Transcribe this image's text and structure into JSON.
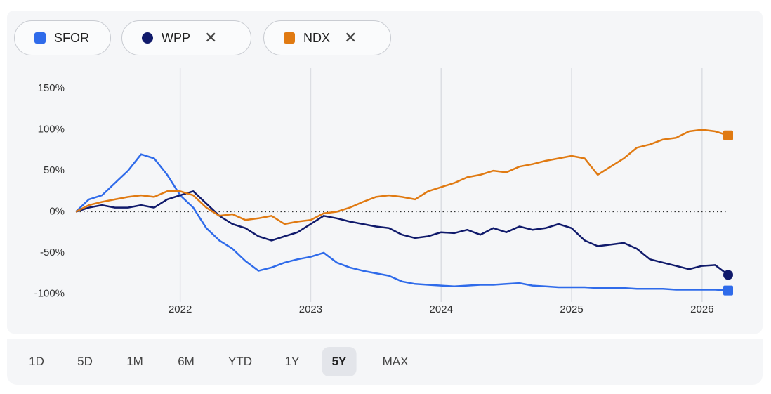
{
  "chart_data": {
    "type": "line",
    "x": [
      2021.2,
      2021.3,
      2021.4,
      2021.5,
      2021.6,
      2021.7,
      2021.8,
      2021.9,
      2022.0,
      2022.1,
      2022.2,
      2022.3,
      2022.4,
      2022.5,
      2022.6,
      2022.7,
      2022.8,
      2022.9,
      2023.0,
      2023.1,
      2023.2,
      2023.3,
      2023.4,
      2023.5,
      2023.6,
      2023.7,
      2023.8,
      2023.9,
      2024.0,
      2024.1,
      2024.2,
      2024.3,
      2024.4,
      2024.5,
      2024.6,
      2024.7,
      2024.8,
      2024.9,
      2025.0,
      2025.1,
      2025.2,
      2025.3,
      2025.4,
      2025.5,
      2025.6,
      2025.7,
      2025.8,
      2025.9,
      2026.0,
      2026.1,
      2026.2
    ],
    "series": [
      {
        "name": "SFOR",
        "color": "#2f6bea",
        "marker": "square",
        "removable": false,
        "values": [
          0,
          15,
          20,
          35,
          50,
          70,
          65,
          45,
          20,
          5,
          -20,
          -35,
          -45,
          -60,
          -72,
          -68,
          -62,
          -58,
          -55,
          -50,
          -62,
          -68,
          -72,
          -75,
          -78,
          -85,
          -88,
          -89,
          -90,
          -91,
          -90,
          -89,
          -89,
          -88,
          -87,
          -90,
          -91,
          -92,
          -92,
          -92,
          -93,
          -93,
          -93,
          -94,
          -94,
          -94,
          -95,
          -95,
          -95,
          -95,
          -96
        ]
      },
      {
        "name": "WPP",
        "color": "#101a6b",
        "marker": "circle",
        "removable": true,
        "values": [
          0,
          5,
          8,
          5,
          5,
          8,
          5,
          15,
          20,
          25,
          10,
          -5,
          -15,
          -20,
          -30,
          -35,
          -30,
          -25,
          -15,
          -5,
          -8,
          -12,
          -15,
          -18,
          -20,
          -28,
          -32,
          -30,
          -25,
          -26,
          -22,
          -28,
          -20,
          -25,
          -18,
          -22,
          -20,
          -15,
          -20,
          -35,
          -42,
          -40,
          -38,
          -45,
          -58,
          -62,
          -66,
          -70,
          -66,
          -65,
          -77
        ]
      },
      {
        "name": "NDX",
        "color": "#e07a12",
        "marker": "square",
        "removable": true,
        "values": [
          0,
          8,
          12,
          15,
          18,
          20,
          18,
          25,
          25,
          20,
          5,
          -5,
          -3,
          -10,
          -8,
          -5,
          -15,
          -12,
          -10,
          -2,
          0,
          5,
          12,
          18,
          20,
          18,
          15,
          25,
          30,
          35,
          42,
          45,
          50,
          48,
          55,
          58,
          62,
          65,
          68,
          65,
          45,
          55,
          65,
          78,
          82,
          88,
          90,
          98,
          100,
          98,
          93
        ]
      }
    ],
    "xlim": [
      2021.2,
      2026.2
    ],
    "xticks": [
      2022,
      2023,
      2024,
      2025,
      2026
    ],
    "ylim": [
      -110,
      175
    ],
    "yticks": [
      {
        "value": -100,
        "label": "-100%"
      },
      {
        "value": -50,
        "label": "-50%"
      },
      {
        "value": 0,
        "label": "0%"
      },
      {
        "value": 50,
        "label": "50%"
      },
      {
        "value": 100,
        "label": "100%"
      },
      {
        "value": 150,
        "label": "150%"
      }
    ],
    "grid": true,
    "zero_line": true
  },
  "ranges": [
    "1D",
    "5D",
    "1M",
    "6M",
    "YTD",
    "1Y",
    "5Y",
    "MAX"
  ],
  "selected_range": 6
}
